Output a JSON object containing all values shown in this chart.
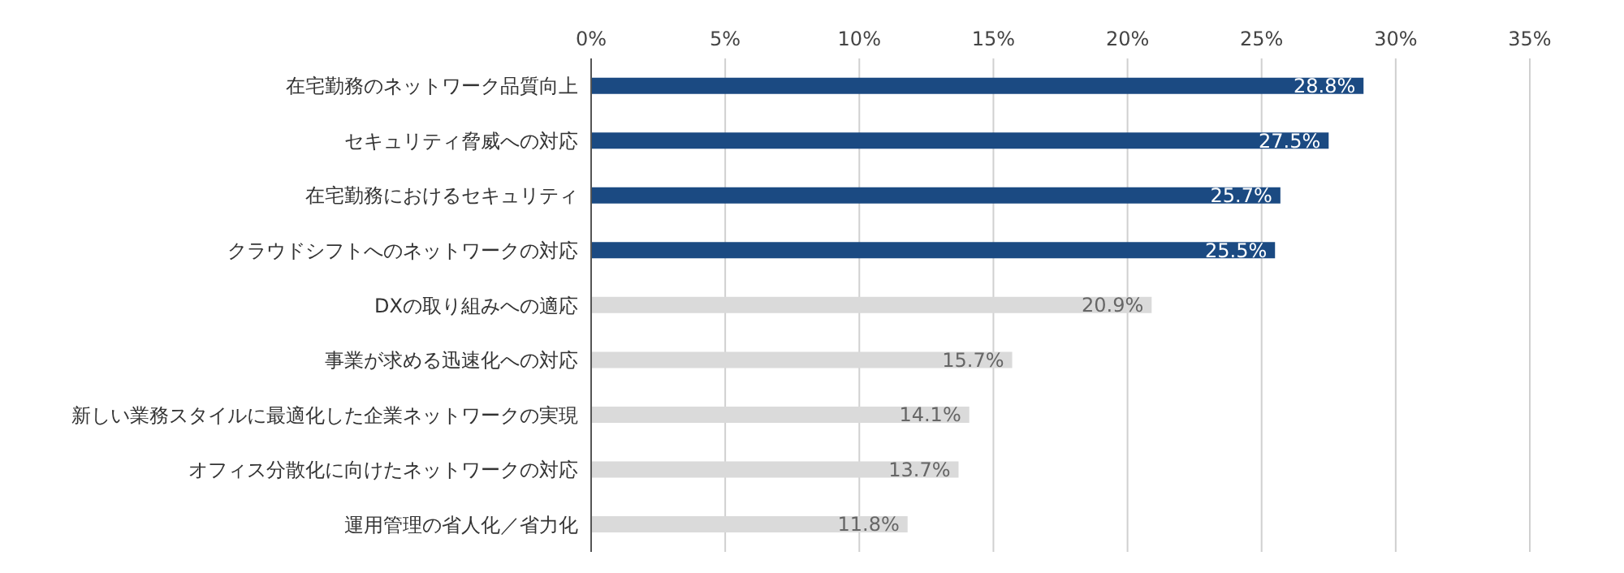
{
  "chart_data": {
    "type": "bar",
    "orientation": "horizontal",
    "categories": [
      "在宅勤務のネットワーク品質向上",
      "セキュリティ脅威への対応",
      "在宅勤務におけるセキュリティ",
      "クラウドシフトへのネットワークの対応",
      "DXの取り組みへの適応",
      "事業が求める迅速化への対応",
      "新しい業務スタイルに最適化した企業ネットワークの実現",
      "オフィス分散化に向けたネットワークの対応",
      "運用管理の省人化／省力化"
    ],
    "values": [
      28.8,
      27.5,
      25.7,
      25.5,
      20.9,
      15.7,
      14.1,
      13.7,
      11.8
    ],
    "colors": [
      "#1b4a82",
      "#1b4a82",
      "#1b4a82",
      "#1b4a82",
      "#dadada",
      "#dadada",
      "#dadada",
      "#dadada",
      "#dadada"
    ],
    "value_labels": [
      "28.8%",
      "27.5%",
      "25.7%",
      "25.5%",
      "20.9%",
      "15.7%",
      "14.1%",
      "13.7%",
      "11.8%"
    ],
    "xlim": [
      0,
      35
    ],
    "xticks": [
      {
        "value": 0,
        "label": "0%"
      },
      {
        "value": 5,
        "label": "5%"
      },
      {
        "value": 10,
        "label": "10%"
      },
      {
        "value": 15,
        "label": "15%"
      },
      {
        "value": 20,
        "label": "20%"
      },
      {
        "value": 25,
        "label": "25%"
      },
      {
        "value": 30,
        "label": "30%"
      },
      {
        "value": 35,
        "label": "35%"
      }
    ],
    "grid": "x"
  }
}
